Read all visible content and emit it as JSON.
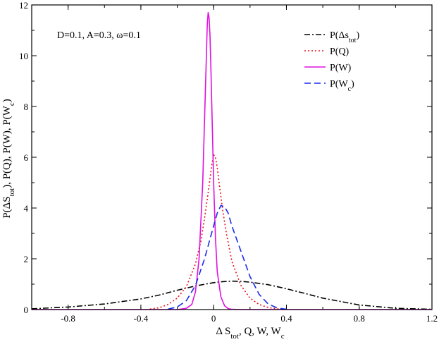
{
  "chart_data": {
    "type": "line",
    "annotation": "D=0.1, A=0.3, ω=0.1",
    "xlabel": {
      "base": "Δ S",
      "sub": "tot",
      "rest": ", Q, W, W",
      "sub2": "c"
    },
    "ylabel": {
      "p1": "P(ΔS",
      "sub1": "tot",
      "p2": "), P(Q), P(W), P(W",
      "sub2": "c",
      "p3": ")"
    },
    "xlim": [
      -1.0,
      1.2
    ],
    "ylim": [
      0,
      12
    ],
    "xticks": [
      -0.8,
      -0.4,
      0,
      0.4,
      0.8,
      1.2
    ],
    "xtick_labels": [
      "-0.8",
      "-0.4",
      "0",
      "0.4",
      "0.8",
      "1.2"
    ],
    "yticks": [
      0,
      2,
      4,
      6,
      8,
      10,
      12
    ],
    "ytick_labels": [
      "0",
      "2",
      "4",
      "6",
      "8",
      "10",
      "12"
    ],
    "grid": false,
    "legend_position": "top-right",
    "series": [
      {
        "name": "P(Δs_tot)",
        "legend": {
          "base": "P(Δs",
          "sub": "tot",
          "tail": ")"
        },
        "color": "#000000",
        "dash": "8,3,2,3",
        "x": [
          -1.0,
          -0.8,
          -0.6,
          -0.4,
          -0.3,
          -0.2,
          -0.1,
          0.0,
          0.05,
          0.1,
          0.15,
          0.2,
          0.3,
          0.4,
          0.5,
          0.6,
          0.8,
          1.0,
          1.2
        ],
        "y": [
          0.03,
          0.1,
          0.22,
          0.42,
          0.57,
          0.76,
          0.93,
          1.06,
          1.1,
          1.12,
          1.11,
          1.08,
          0.98,
          0.82,
          0.64,
          0.45,
          0.18,
          0.05,
          0.01
        ]
      },
      {
        "name": "P(Q)",
        "legend": {
          "base": "P(Q)",
          "sub": "",
          "tail": ""
        },
        "color": "#e8141e",
        "dash": "2,3",
        "x": [
          -0.35,
          -0.3,
          -0.25,
          -0.2,
          -0.15,
          -0.1,
          -0.07,
          -0.05,
          -0.03,
          -0.01,
          0.0,
          0.01,
          0.02,
          0.03,
          0.05,
          0.07,
          0.1,
          0.15,
          0.2,
          0.25,
          0.3,
          0.35,
          0.4
        ],
        "y": [
          0.02,
          0.07,
          0.2,
          0.45,
          0.9,
          1.8,
          2.7,
          3.6,
          4.6,
          5.7,
          6.1,
          6.0,
          5.6,
          5.0,
          3.9,
          3.0,
          1.9,
          0.95,
          0.45,
          0.2,
          0.08,
          0.03,
          0.01
        ]
      },
      {
        "name": "P(W)",
        "legend": {
          "base": "P(W)",
          "sub": "",
          "tail": ""
        },
        "color": "#e010e0",
        "dash": "",
        "x": [
          -1.0,
          -0.2,
          -0.15,
          -0.12,
          -0.1,
          -0.08,
          -0.06,
          -0.05,
          -0.04,
          -0.035,
          -0.03,
          -0.025,
          -0.02,
          -0.015,
          -0.01,
          0.0,
          0.01,
          0.02,
          0.04,
          0.06,
          0.08,
          0.1,
          0.15,
          1.2
        ],
        "y": [
          0.0,
          0.0,
          0.05,
          0.2,
          0.7,
          2.0,
          5.0,
          7.5,
          10.0,
          11.2,
          11.7,
          11.5,
          10.8,
          9.5,
          8.0,
          5.0,
          2.8,
          1.5,
          0.5,
          0.15,
          0.04,
          0.01,
          0.0,
          0.0
        ]
      },
      {
        "name": "P(W_c)",
        "legend": {
          "base": "P(W",
          "sub": "c",
          "tail": ")"
        },
        "color": "#1a2bea",
        "dash": "9,5",
        "x": [
          -0.25,
          -0.2,
          -0.15,
          -0.1,
          -0.05,
          0.0,
          0.02,
          0.04,
          0.06,
          0.08,
          0.1,
          0.15,
          0.2,
          0.25,
          0.3,
          0.35,
          0.4
        ],
        "y": [
          0.02,
          0.1,
          0.35,
          0.95,
          2.0,
          3.3,
          3.8,
          4.1,
          4.05,
          3.8,
          3.3,
          2.3,
          1.3,
          0.6,
          0.22,
          0.06,
          0.01
        ]
      }
    ]
  }
}
